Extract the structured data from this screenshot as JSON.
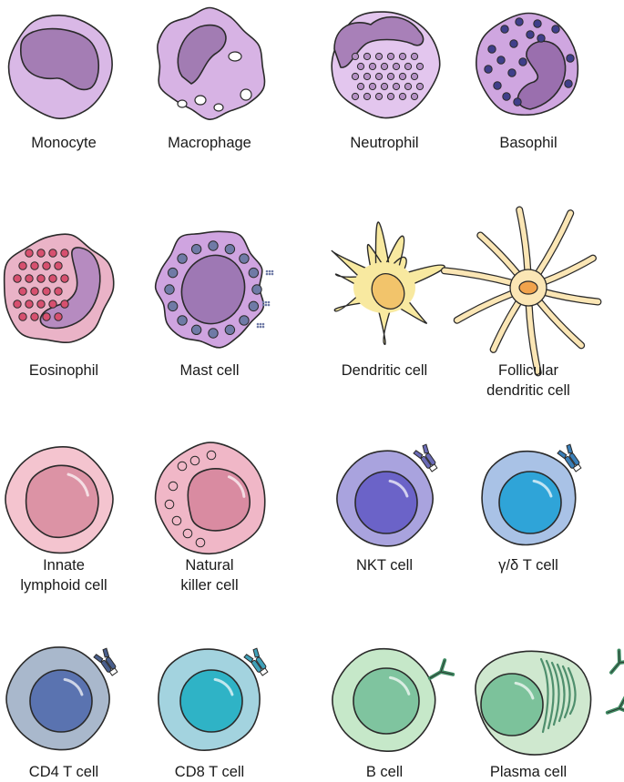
{
  "figure": {
    "rows": [
      {
        "cells": [
          {
            "key": "monocyte",
            "label": [
              "Monocyte"
            ]
          },
          {
            "key": "macrophage",
            "label": [
              "Macrophage"
            ]
          },
          {
            "key": "neutrophil",
            "label": [
              "Neutrophil"
            ]
          },
          {
            "key": "basophil",
            "label": [
              "Basophil"
            ]
          }
        ]
      },
      {
        "cells": [
          {
            "key": "eosinophil",
            "label": [
              "Eosinophil"
            ]
          },
          {
            "key": "mast",
            "label": [
              "Mast cell"
            ]
          },
          {
            "key": "dendritic",
            "label": [
              "Dendritic cell"
            ]
          },
          {
            "key": "follicular",
            "label": [
              "Follicular",
              "dendritic cell"
            ]
          }
        ]
      },
      {
        "cells": [
          {
            "key": "ilc",
            "label": [
              "Innate",
              "lymphoid cell"
            ]
          },
          {
            "key": "nk",
            "label": [
              "Natural",
              "killer cell"
            ]
          },
          {
            "key": "nkt",
            "label": [
              "NKT cell"
            ]
          },
          {
            "key": "gdt",
            "label": [
              "γ/δ T cell"
            ]
          }
        ]
      },
      {
        "cells": [
          {
            "key": "cd4",
            "label": [
              "CD4 T cell"
            ]
          },
          {
            "key": "cd8",
            "label": [
              "CD8 T cell"
            ]
          },
          {
            "key": "bcell",
            "label": [
              "B cell"
            ]
          },
          {
            "key": "plasma",
            "label": [
              "Plasma cell"
            ]
          }
        ]
      }
    ]
  },
  "colors": {
    "outline": "#2a2a2a",
    "monocyte_cell": "#d9b8e6",
    "monocyte_nucleus": "#a47db4",
    "macrophage_cell": "#d7b3e4",
    "macrophage_nucleus": "#a27cb3",
    "neutrophil_cell": "#e3c6ee",
    "neutrophil_nucleus": "#a880b8",
    "neutrophil_granule": "#b48fc4",
    "basophil_cell": "#cfa6e0",
    "basophil_nucleus": "#9a6fae",
    "basophil_granule": "#3f3f8a",
    "eosinophil_cell": "#eab3c7",
    "eosinophil_nucleus": "#b68bc0",
    "eosinophil_granule": "#d7506f",
    "mast_cell": "#cfa4e0",
    "mast_nucleus": "#9e78b4",
    "mast_granule": "#6f7aa6",
    "dendritic_cell": "#f8e9a0",
    "dendritic_nucleus": "#f2c46b",
    "follicular_cell": "#fbe6b5",
    "follicular_nucleus": "#f1a34c",
    "ilc_cell": "#f4c4cf",
    "ilc_nucleus": "#dc93a5",
    "nk_cell": "#f0b7c7",
    "nk_nucleus": "#d98ba1",
    "nkt_cell": "#a9a3de",
    "nkt_nucleus": "#6b63c8",
    "gdt_cell": "#a9c2e6",
    "gdt_nucleus": "#2fa4d8",
    "cd4_cell": "#a9b8cc",
    "cd4_nucleus": "#5a73b0",
    "cd8_cell": "#a3d3df",
    "cd8_nucleus": "#2fb3c6",
    "bcell_cell": "#c6e8c9",
    "bcell_nucleus": "#7fc49f",
    "plasma_cell": "#cfe8cf",
    "plasma_nucleus": "#7cc29b",
    "plasma_er": "#4f8f6d",
    "receptor_nkt": "#6a6ab5",
    "receptor_gdt": "#3a7fb8",
    "receptor_cd4": "#4a5f8c",
    "receptor_cd8": "#3fa0b8",
    "antibody": "#3f8a62"
  }
}
